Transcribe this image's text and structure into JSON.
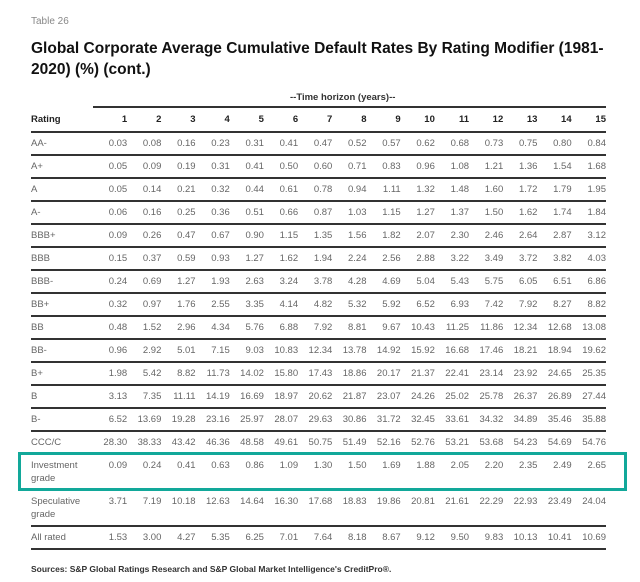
{
  "table_number": "Table 26",
  "title": "Global Corporate Average Cumulative Default Rates By Rating Modifier (1981-2020) (%)  (cont.)",
  "header_group": "--Time horizon (years)--",
  "columns": [
    "Rating",
    "1",
    "2",
    "3",
    "4",
    "5",
    "6",
    "7",
    "8",
    "9",
    "10",
    "11",
    "12",
    "13",
    "14",
    "15"
  ],
  "rows": [
    [
      "AA-",
      "0.03",
      "0.08",
      "0.16",
      "0.23",
      "0.31",
      "0.41",
      "0.47",
      "0.52",
      "0.57",
      "0.62",
      "0.68",
      "0.73",
      "0.75",
      "0.80",
      "0.84"
    ],
    [
      "A+",
      "0.05",
      "0.09",
      "0.19",
      "0.31",
      "0.41",
      "0.50",
      "0.60",
      "0.71",
      "0.83",
      "0.96",
      "1.08",
      "1.21",
      "1.36",
      "1.54",
      "1.68"
    ],
    [
      "A",
      "0.05",
      "0.14",
      "0.21",
      "0.32",
      "0.44",
      "0.61",
      "0.78",
      "0.94",
      "1.11",
      "1.32",
      "1.48",
      "1.60",
      "1.72",
      "1.79",
      "1.95"
    ],
    [
      "A-",
      "0.06",
      "0.16",
      "0.25",
      "0.36",
      "0.51",
      "0.66",
      "0.87",
      "1.03",
      "1.15",
      "1.27",
      "1.37",
      "1.50",
      "1.62",
      "1.74",
      "1.84"
    ],
    [
      "BBB+",
      "0.09",
      "0.26",
      "0.47",
      "0.67",
      "0.90",
      "1.15",
      "1.35",
      "1.56",
      "1.82",
      "2.07",
      "2.30",
      "2.46",
      "2.64",
      "2.87",
      "3.12"
    ],
    [
      "BBB",
      "0.15",
      "0.37",
      "0.59",
      "0.93",
      "1.27",
      "1.62",
      "1.94",
      "2.24",
      "2.56",
      "2.88",
      "3.22",
      "3.49",
      "3.72",
      "3.82",
      "4.03"
    ],
    [
      "BBB-",
      "0.24",
      "0.69",
      "1.27",
      "1.93",
      "2.63",
      "3.24",
      "3.78",
      "4.28",
      "4.69",
      "5.04",
      "5.43",
      "5.75",
      "6.05",
      "6.51",
      "6.86"
    ],
    [
      "BB+",
      "0.32",
      "0.97",
      "1.76",
      "2.55",
      "3.35",
      "4.14",
      "4.82",
      "5.32",
      "5.92",
      "6.52",
      "6.93",
      "7.42",
      "7.92",
      "8.27",
      "8.82"
    ],
    [
      "BB",
      "0.48",
      "1.52",
      "2.96",
      "4.34",
      "5.76",
      "6.88",
      "7.92",
      "8.81",
      "9.67",
      "10.43",
      "11.25",
      "11.86",
      "12.34",
      "12.68",
      "13.08"
    ],
    [
      "BB-",
      "0.96",
      "2.92",
      "5.01",
      "7.15",
      "9.03",
      "10.83",
      "12.34",
      "13.78",
      "14.92",
      "15.92",
      "16.68",
      "17.46",
      "18.21",
      "18.94",
      "19.62"
    ],
    [
      "B+",
      "1.98",
      "5.42",
      "8.82",
      "11.73",
      "14.02",
      "15.80",
      "17.43",
      "18.86",
      "20.17",
      "21.37",
      "22.41",
      "23.14",
      "23.92",
      "24.65",
      "25.35"
    ],
    [
      "B",
      "3.13",
      "7.35",
      "11.11",
      "14.19",
      "16.69",
      "18.97",
      "20.62",
      "21.87",
      "23.07",
      "24.26",
      "25.02",
      "25.78",
      "26.37",
      "26.89",
      "27.44"
    ],
    [
      "B-",
      "6.52",
      "13.69",
      "19.28",
      "23.16",
      "25.97",
      "28.07",
      "29.63",
      "30.86",
      "31.72",
      "32.45",
      "33.61",
      "34.32",
      "34.89",
      "35.46",
      "35.88"
    ],
    [
      "CCC/C",
      "28.30",
      "38.33",
      "43.42",
      "46.36",
      "48.58",
      "49.61",
      "50.75",
      "51.49",
      "52.16",
      "52.76",
      "53.21",
      "53.68",
      "54.23",
      "54.69",
      "54.76"
    ],
    [
      "Investment grade",
      "0.09",
      "0.24",
      "0.41",
      "0.63",
      "0.86",
      "1.09",
      "1.30",
      "1.50",
      "1.69",
      "1.88",
      "2.05",
      "2.20",
      "2.35",
      "2.49",
      "2.65"
    ],
    [
      "Speculative grade",
      "3.71",
      "7.19",
      "10.18",
      "12.63",
      "14.64",
      "16.30",
      "17.68",
      "18.83",
      "19.86",
      "20.81",
      "21.61",
      "22.29",
      "22.93",
      "23.49",
      "24.04"
    ],
    [
      "All rated",
      "1.53",
      "3.00",
      "4.27",
      "5.35",
      "6.25",
      "7.01",
      "7.64",
      "8.18",
      "8.67",
      "9.12",
      "9.50",
      "9.83",
      "10.13",
      "10.41",
      "10.69"
    ]
  ],
  "highlighted_row": "Investment grade",
  "highlight_color": "#12a89a",
  "source": "Sources: S&P Global Ratings Research and S&P Global Market Intelligence's CreditPro®."
}
